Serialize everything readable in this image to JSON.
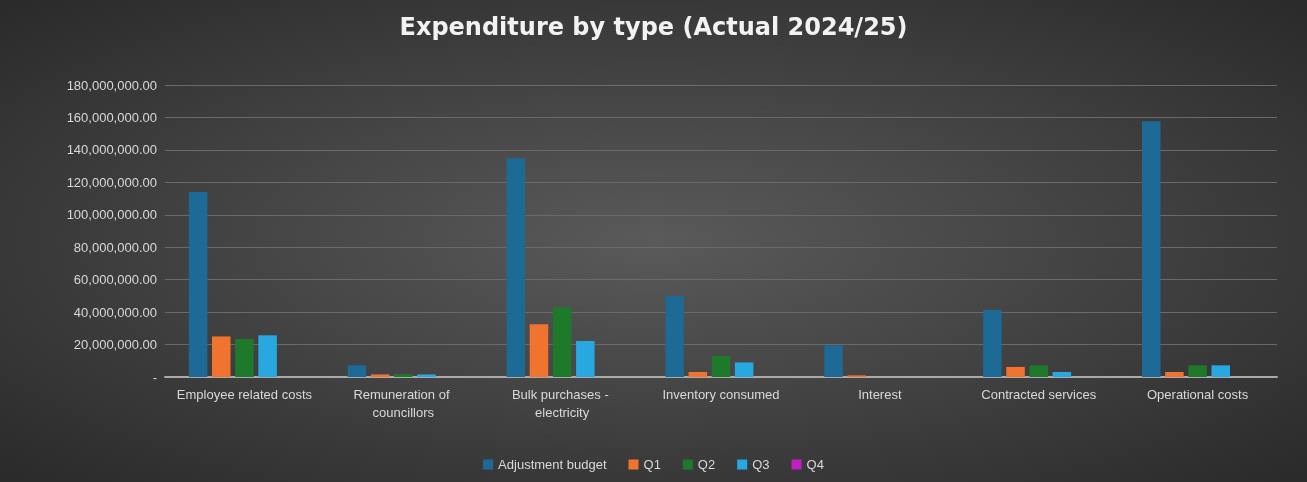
{
  "chart_data": {
    "type": "bar",
    "title": "Expenditure by type (Actual 2024/25)",
    "categories": [
      "Employee related costs",
      "Remuneration of councillors",
      "Bulk purchases - electricity",
      "Inventory consumed",
      "Interest",
      "Contracted services",
      "Operational costs"
    ],
    "series": [
      {
        "name": "Adjustment budget",
        "color": "#1d6a96",
        "values": [
          114000000,
          7200000,
          134800000,
          50000000,
          19500000,
          41300000,
          157700000
        ]
      },
      {
        "name": "Q1",
        "color": "#f07430",
        "values": [
          25000000,
          1600000,
          32500000,
          3100000,
          1000000,
          6200000,
          3100000
        ]
      },
      {
        "name": "Q2",
        "color": "#1e7a2a",
        "values": [
          23400000,
          1800000,
          43000000,
          13000000,
          null,
          7200000,
          7200000
        ]
      },
      {
        "name": "Q3",
        "color": "#27a8e0",
        "values": [
          25700000,
          1600000,
          22200000,
          9000000,
          null,
          3100000,
          7200000
        ]
      },
      {
        "name": "Q4",
        "color": "#c020c0",
        "values": [
          0,
          0,
          0,
          0,
          0,
          0,
          0
        ]
      }
    ],
    "ylim": [
      0,
      180000000
    ],
    "yticks": [
      {
        "value": 0,
        "label": "-"
      },
      {
        "value": 20000000,
        "label": "20,000,000.00"
      },
      {
        "value": 40000000,
        "label": "40,000,000.00"
      },
      {
        "value": 60000000,
        "label": "60,000,000.00"
      },
      {
        "value": 80000000,
        "label": "80,000,000.00"
      },
      {
        "value": 100000000,
        "label": "100,000,000.00"
      },
      {
        "value": 120000000,
        "label": "120,000,000.00"
      },
      {
        "value": 140000000,
        "label": "140,000,000.00"
      },
      {
        "value": 160000000,
        "label": "160,000,000.00"
      },
      {
        "value": 180000000,
        "label": "180,000,000.00"
      }
    ],
    "grid": "y",
    "legend": "bottom"
  }
}
